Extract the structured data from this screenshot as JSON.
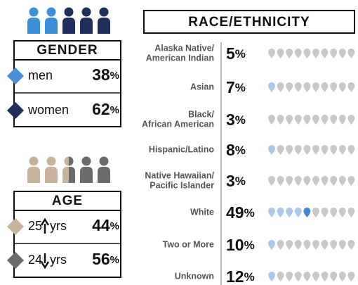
{
  "percent_sign": "%",
  "gender": {
    "title": "GENDER",
    "rows": [
      {
        "label": "men",
        "value": 38
      },
      {
        "label": "women",
        "value": 62
      }
    ]
  },
  "age": {
    "title": "AGE",
    "rows": [
      {
        "age": "25",
        "unit": "yrs",
        "value": 44
      },
      {
        "age": "24",
        "unit": "yrs",
        "value": 56
      }
    ]
  },
  "race": {
    "title": "RACE/ETHNICITY",
    "rows": [
      {
        "label": [
          "Alaska Native/",
          "American Indian"
        ],
        "value": 5
      },
      {
        "label": [
          "Asian"
        ],
        "value": 7
      },
      {
        "label": [
          "Black/",
          "African American"
        ],
        "value": 3
      },
      {
        "label": [
          "Hispanic/Latino"
        ],
        "value": 8
      },
      {
        "label": [
          "Native Hawaiian/",
          "Pacific Islander"
        ],
        "value": 3
      },
      {
        "label": [
          "White"
        ],
        "value": 49
      },
      {
        "label": [
          "Two or More"
        ],
        "value": 10
      },
      {
        "label": [
          "Unknown"
        ],
        "value": 12
      }
    ]
  }
}
